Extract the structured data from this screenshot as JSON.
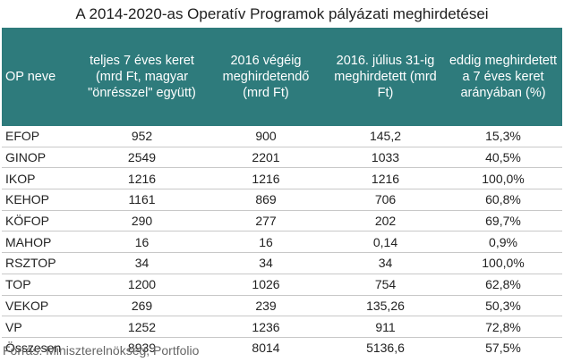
{
  "title": "A 2014-2020-as Operatív Programok pályázati meghirdetései",
  "headers": [
    "OP neve",
    "teljes 7 éves keret (mrd Ft, magyar \"önrésszel\" együtt)",
    "2016 végéig meghirdetendő (mrd Ft)",
    "2016. július 31-ig meghirdetett (mrd Ft)",
    "eddig meghirdetett a 7 éves keret arányában (%)"
  ],
  "rows": [
    [
      "EFOP",
      "952",
      "900",
      "145,2",
      "15,3%"
    ],
    [
      "GINOP",
      "2549",
      "2201",
      "1033",
      "40,5%"
    ],
    [
      "IKOP",
      "1216",
      "1216",
      "1216",
      "100,0%"
    ],
    [
      "KEHOP",
      "1161",
      "869",
      "706",
      "60,8%"
    ],
    [
      "KÖFOP",
      "290",
      "277",
      "202",
      "69,7%"
    ],
    [
      "MAHOP",
      "16",
      "16",
      "0,14",
      "0,9%"
    ],
    [
      "RSZTOP",
      "34",
      "34",
      "34",
      "100,0%"
    ],
    [
      "TOP",
      "1200",
      "1026",
      "754",
      "62,8%"
    ],
    [
      "VEKOP",
      "269",
      "239",
      "135,26",
      "50,3%"
    ],
    [
      "VP",
      "1252",
      "1236",
      "911",
      "72,8%"
    ],
    [
      "Összesen",
      "8939",
      "8014",
      "5136,6",
      "57,5%"
    ]
  ],
  "source": "Forrás: Miniszterelnökség, Portfolio",
  "colors": {
    "header_bg": "#2e7b7c",
    "header_text": "#ffffff",
    "row_border": "#c8c8c8"
  }
}
